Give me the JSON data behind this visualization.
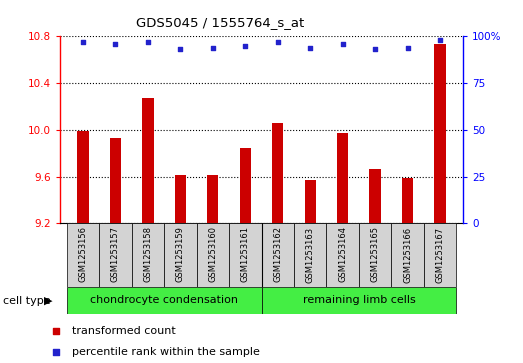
{
  "title": "GDS5045 / 1555764_s_at",
  "samples": [
    "GSM1253156",
    "GSM1253157",
    "GSM1253158",
    "GSM1253159",
    "GSM1253160",
    "GSM1253161",
    "GSM1253162",
    "GSM1253163",
    "GSM1253164",
    "GSM1253165",
    "GSM1253166",
    "GSM1253167"
  ],
  "bar_values": [
    9.99,
    9.93,
    10.27,
    9.61,
    9.61,
    9.84,
    10.06,
    9.57,
    9.97,
    9.66,
    9.59,
    10.73
  ],
  "percentile_values": [
    97,
    96,
    97,
    93,
    94,
    95,
    97,
    94,
    96,
    93,
    94,
    98
  ],
  "bar_color": "#cc0000",
  "dot_color": "#2222cc",
  "ylim_left": [
    9.2,
    10.8
  ],
  "ylim_right": [
    0,
    100
  ],
  "yticks_left": [
    9.2,
    9.6,
    10.0,
    10.4,
    10.8
  ],
  "yticks_right": [
    0,
    25,
    50,
    75,
    100
  ],
  "ytick_labels_right": [
    "0",
    "25",
    "50",
    "75",
    "100%"
  ],
  "groups": [
    {
      "label": "chondrocyte condensation",
      "start": 0,
      "end": 5,
      "color": "#44ee44"
    },
    {
      "label": "remaining limb cells",
      "start": 6,
      "end": 11,
      "color": "#44ee44"
    }
  ],
  "cell_type_label": "cell type",
  "legend_items": [
    {
      "label": "transformed count",
      "color": "#cc0000"
    },
    {
      "label": "percentile rank within the sample",
      "color": "#2222cc"
    }
  ],
  "background_color": "#d3d3d3",
  "plot_bg": "#ffffff"
}
